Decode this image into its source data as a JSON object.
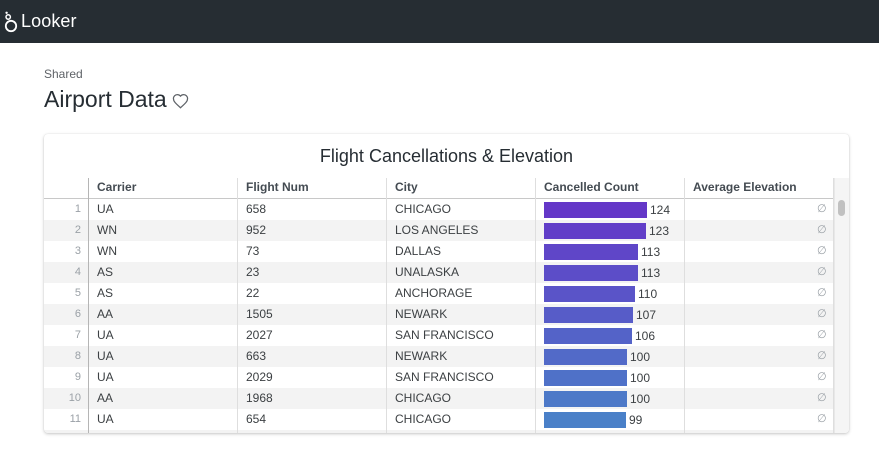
{
  "app": {
    "logo_text": "Looker"
  },
  "page": {
    "breadcrumb": "Shared",
    "title": "Airport Data"
  },
  "tile": {
    "title": "Flight Cancellations & Elevation",
    "columns": [
      "Carrier",
      "Flight Num",
      "City",
      "Cancelled Count",
      "Average Elevation"
    ],
    "null_symbol": "∅",
    "rows": [
      {
        "n": "1",
        "carrier": "UA",
        "flight": "658",
        "city": "CHICAGO",
        "cancelled": 124
      },
      {
        "n": "2",
        "carrier": "WN",
        "flight": "952",
        "city": "LOS ANGELES",
        "cancelled": 123
      },
      {
        "n": "3",
        "carrier": "WN",
        "flight": "73",
        "city": "DALLAS",
        "cancelled": 113
      },
      {
        "n": "4",
        "carrier": "AS",
        "flight": "23",
        "city": "UNALASKA",
        "cancelled": 113
      },
      {
        "n": "5",
        "carrier": "AS",
        "flight": "22",
        "city": "ANCHORAGE",
        "cancelled": 110
      },
      {
        "n": "6",
        "carrier": "AA",
        "flight": "1505",
        "city": "NEWARK",
        "cancelled": 107
      },
      {
        "n": "7",
        "carrier": "UA",
        "flight": "2027",
        "city": "SAN FRANCISCO",
        "cancelled": 106
      },
      {
        "n": "8",
        "carrier": "UA",
        "flight": "663",
        "city": "NEWARK",
        "cancelled": 100
      },
      {
        "n": "9",
        "carrier": "UA",
        "flight": "2029",
        "city": "SAN FRANCISCO",
        "cancelled": 100
      },
      {
        "n": "10",
        "carrier": "AA",
        "flight": "1968",
        "city": "CHICAGO",
        "cancelled": 100
      },
      {
        "n": "11",
        "carrier": "UA",
        "flight": "654",
        "city": "CHICAGO",
        "cancelled": 99
      }
    ],
    "partial_row_cancelled": 99,
    "bar_max_value": 124,
    "bar_colors": [
      "#6437c8",
      "#4a80c8"
    ]
  }
}
